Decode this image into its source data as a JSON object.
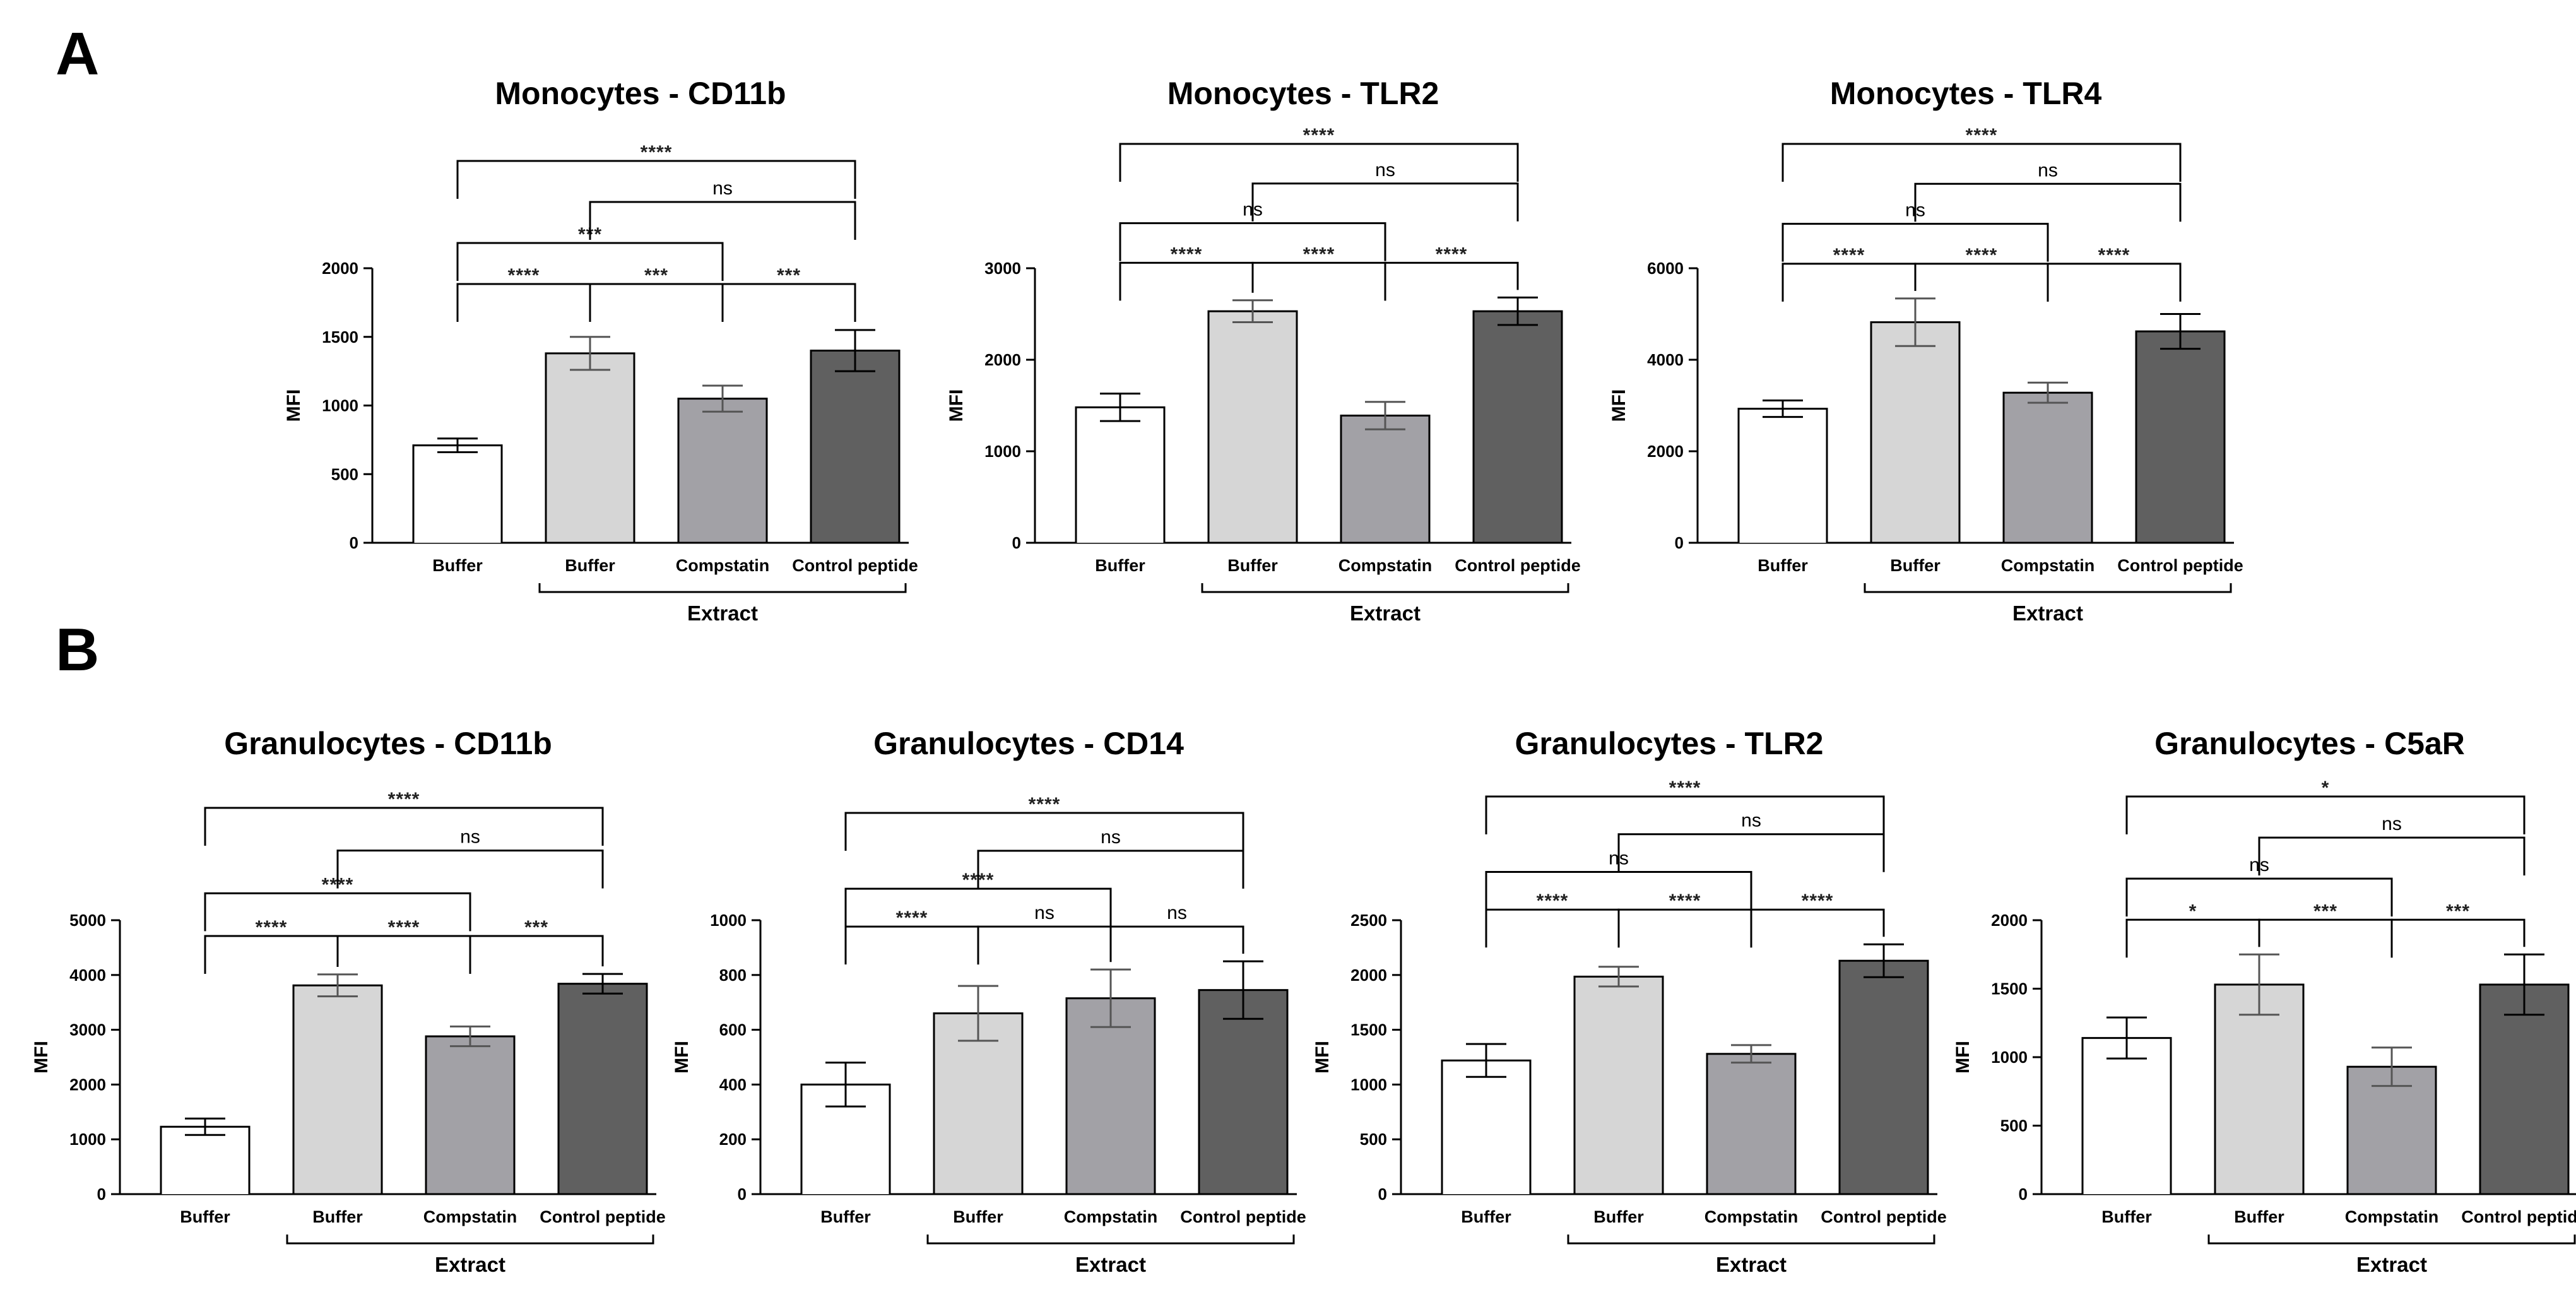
{
  "panels": [
    {
      "letter": "A"
    },
    {
      "letter": "B"
    }
  ],
  "chart_data": [
    {
      "type": "bar",
      "panel": "A",
      "title": "Monocytes - CD11b",
      "ylabel": "MFI",
      "ylim": [
        0,
        2000
      ],
      "yticks": [
        0,
        500,
        1000,
        1500,
        2000
      ],
      "categories": [
        "Buffer",
        "Buffer",
        "Compstatin",
        "Control peptide"
      ],
      "group_label": "Extract",
      "values": [
        710,
        1380,
        1050,
        1400
      ],
      "errors": [
        50,
        120,
        95,
        150
      ],
      "colors": [
        "#ffffff",
        "#d6d6d6",
        "#a2a1a6",
        "#606060"
      ],
      "comparisons": [
        {
          "from": 0,
          "to": 1,
          "label": "****"
        },
        {
          "from": 1,
          "to": 2,
          "label": "***"
        },
        {
          "from": 2,
          "to": 3,
          "label": "***"
        },
        {
          "from": 0,
          "to": 2,
          "label": "***"
        },
        {
          "from": 1,
          "to": 3,
          "label": "ns"
        },
        {
          "from": 0,
          "to": 3,
          "label": "****"
        }
      ]
    },
    {
      "type": "bar",
      "panel": "A",
      "title": "Monocytes - TLR2",
      "ylabel": "MFI",
      "ylim": [
        0,
        3000
      ],
      "yticks": [
        0,
        1000,
        2000,
        3000
      ],
      "categories": [
        "Buffer",
        "Buffer",
        "Compstatin",
        "Control peptide"
      ],
      "group_label": "Extract",
      "values": [
        1480,
        2530,
        1390,
        2530
      ],
      "errors": [
        150,
        120,
        150,
        150
      ],
      "colors": [
        "#ffffff",
        "#d6d6d6",
        "#a2a1a6",
        "#606060"
      ],
      "comparisons": [
        {
          "from": 0,
          "to": 1,
          "label": "****"
        },
        {
          "from": 1,
          "to": 2,
          "label": "****"
        },
        {
          "from": 2,
          "to": 3,
          "label": "****"
        },
        {
          "from": 0,
          "to": 2,
          "label": "ns"
        },
        {
          "from": 1,
          "to": 3,
          "label": "ns"
        },
        {
          "from": 0,
          "to": 3,
          "label": "****"
        }
      ]
    },
    {
      "type": "bar",
      "panel": "A",
      "title": "Monocytes - TLR4",
      "ylabel": "MFI",
      "ylim": [
        0,
        6000
      ],
      "yticks": [
        0,
        2000,
        4000,
        6000
      ],
      "categories": [
        "Buffer",
        "Buffer",
        "Compstatin",
        "Control peptide"
      ],
      "group_label": "Extract",
      "values": [
        2930,
        4820,
        3280,
        4620
      ],
      "errors": [
        180,
        520,
        220,
        380
      ],
      "colors": [
        "#ffffff",
        "#d6d6d6",
        "#a2a1a6",
        "#606060"
      ],
      "comparisons": [
        {
          "from": 0,
          "to": 1,
          "label": "****"
        },
        {
          "from": 1,
          "to": 2,
          "label": "****"
        },
        {
          "from": 2,
          "to": 3,
          "label": "****"
        },
        {
          "from": 0,
          "to": 2,
          "label": "ns"
        },
        {
          "from": 1,
          "to": 3,
          "label": "ns"
        },
        {
          "from": 0,
          "to": 3,
          "label": "****"
        }
      ]
    },
    {
      "type": "bar",
      "panel": "B",
      "title": "Granulocytes - CD11b",
      "ylabel": "MFI",
      "ylim": [
        0,
        5000
      ],
      "yticks": [
        0,
        1000,
        2000,
        3000,
        4000,
        5000
      ],
      "categories": [
        "Buffer",
        "Buffer",
        "Compstatin",
        "Control peptide"
      ],
      "group_label": "Extract",
      "values": [
        1230,
        3810,
        2880,
        3840
      ],
      "errors": [
        150,
        200,
        180,
        180
      ],
      "colors": [
        "#ffffff",
        "#d6d6d6",
        "#a2a1a6",
        "#606060"
      ],
      "comparisons": [
        {
          "from": 0,
          "to": 1,
          "label": "****"
        },
        {
          "from": 1,
          "to": 2,
          "label": "****"
        },
        {
          "from": 2,
          "to": 3,
          "label": "***"
        },
        {
          "from": 0,
          "to": 2,
          "label": "****"
        },
        {
          "from": 1,
          "to": 3,
          "label": "ns"
        },
        {
          "from": 0,
          "to": 3,
          "label": "****"
        }
      ]
    },
    {
      "type": "bar",
      "panel": "B",
      "title": "Granulocytes - CD14",
      "ylabel": "MFI",
      "ylim": [
        0,
        1000
      ],
      "yticks": [
        0,
        200,
        400,
        600,
        800,
        1000
      ],
      "categories": [
        "Buffer",
        "Buffer",
        "Compstatin",
        "Control peptide"
      ],
      "group_label": "Extract",
      "values": [
        400,
        660,
        715,
        745
      ],
      "errors": [
        80,
        100,
        105,
        105
      ],
      "colors": [
        "#ffffff",
        "#d6d6d6",
        "#a2a1a6",
        "#606060"
      ],
      "comparisons": [
        {
          "from": 0,
          "to": 1,
          "label": "****"
        },
        {
          "from": 1,
          "to": 2,
          "label": "ns"
        },
        {
          "from": 2,
          "to": 3,
          "label": "ns"
        },
        {
          "from": 0,
          "to": 2,
          "label": "****"
        },
        {
          "from": 1,
          "to": 3,
          "label": "ns"
        },
        {
          "from": 0,
          "to": 3,
          "label": "****"
        }
      ]
    },
    {
      "type": "bar",
      "panel": "B",
      "title": "Granulocytes - TLR2",
      "ylabel": "MFI",
      "ylim": [
        0,
        2500
      ],
      "yticks": [
        0,
        500,
        1000,
        1500,
        2000,
        2500
      ],
      "categories": [
        "Buffer",
        "Buffer",
        "Compstatin",
        "Control peptide"
      ],
      "group_label": "Extract",
      "values": [
        1220,
        1985,
        1280,
        2130
      ],
      "errors": [
        150,
        90,
        80,
        150
      ],
      "colors": [
        "#ffffff",
        "#d6d6d6",
        "#a2a1a6",
        "#606060"
      ],
      "comparisons": [
        {
          "from": 0,
          "to": 1,
          "label": "****"
        },
        {
          "from": 1,
          "to": 2,
          "label": "****"
        },
        {
          "from": 2,
          "to": 3,
          "label": "****"
        },
        {
          "from": 0,
          "to": 2,
          "label": "ns"
        },
        {
          "from": 1,
          "to": 3,
          "label": "ns"
        },
        {
          "from": 0,
          "to": 3,
          "label": "****"
        }
      ]
    },
    {
      "type": "bar",
      "panel": "B",
      "title": "Granulocytes - C5aR",
      "ylabel": "MFI",
      "ylim": [
        0,
        2000
      ],
      "yticks": [
        0,
        500,
        1000,
        1500,
        2000
      ],
      "categories": [
        "Buffer",
        "Buffer",
        "Compstatin",
        "Control peptide"
      ],
      "group_label": "Extract",
      "values": [
        1140,
        1530,
        930,
        1530
      ],
      "errors": [
        150,
        220,
        140,
        220
      ],
      "colors": [
        "#ffffff",
        "#d6d6d6",
        "#a2a1a6",
        "#606060"
      ],
      "comparisons": [
        {
          "from": 0,
          "to": 1,
          "label": "*"
        },
        {
          "from": 1,
          "to": 2,
          "label": "***"
        },
        {
          "from": 2,
          "to": 3,
          "label": "***"
        },
        {
          "from": 0,
          "to": 2,
          "label": "ns"
        },
        {
          "from": 1,
          "to": 3,
          "label": "ns"
        },
        {
          "from": 0,
          "to": 3,
          "label": "*"
        }
      ]
    }
  ]
}
